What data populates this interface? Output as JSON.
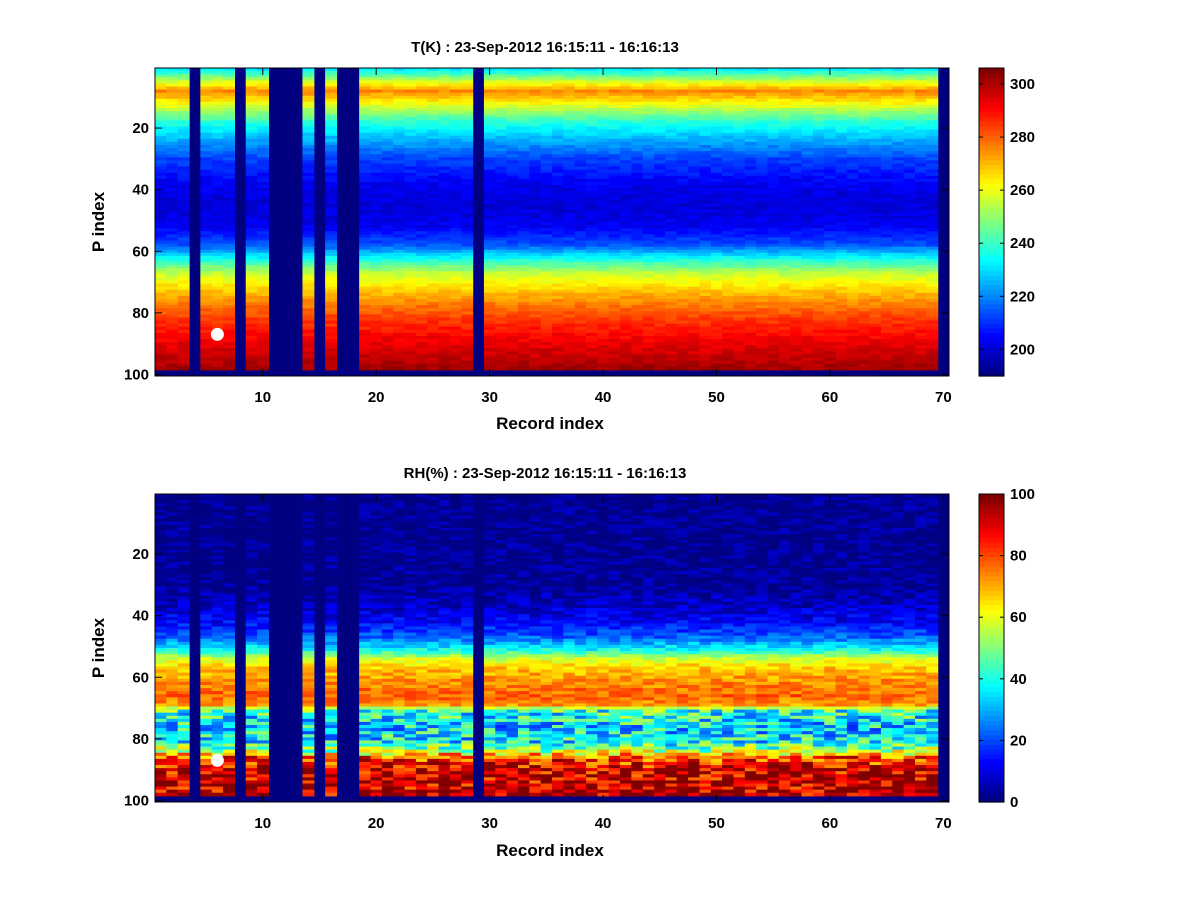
{
  "chart_data": [
    {
      "type": "heatmap",
      "title": "T(K) : 23-Sep-2012 16:15:11 - 16:16:13",
      "xlabel": "Record index",
      "ylabel": "P index",
      "x_range": [
        1,
        70
      ],
      "y_range": [
        1,
        100
      ],
      "y_reversed": true,
      "x_ticks": [
        "10",
        "20",
        "30",
        "40",
        "50",
        "60",
        "70"
      ],
      "y_ticks": [
        "20",
        "40",
        "60",
        "80",
        "100"
      ],
      "colorbar": {
        "range": [
          190,
          306
        ],
        "ticks": [
          "200",
          "220",
          "240",
          "260",
          "280",
          "300"
        ]
      },
      "colormap": "jet",
      "missing_records": [
        4,
        8,
        11,
        12,
        13,
        15,
        17,
        18,
        29,
        70
      ],
      "valid_p_range": [
        1,
        98
      ],
      "marker": {
        "record": 6,
        "p_index": 87,
        "color": "#ffffff"
      },
      "profile": [
        [
          1,
          232
        ],
        [
          5,
          258
        ],
        [
          8,
          276
        ],
        [
          12,
          262
        ],
        [
          18,
          238
        ],
        [
          25,
          222
        ],
        [
          30,
          212
        ],
        [
          38,
          203
        ],
        [
          45,
          200
        ],
        [
          52,
          203
        ],
        [
          58,
          214
        ],
        [
          63,
          238
        ],
        [
          67,
          255
        ],
        [
          72,
          267
        ],
        [
          77,
          277
        ],
        [
          82,
          285
        ],
        [
          88,
          292
        ],
        [
          94,
          298
        ],
        [
          98,
          302
        ]
      ]
    },
    {
      "type": "heatmap",
      "title": "RH(%) : 23-Sep-2012 16:15:11 - 16:16:13",
      "xlabel": "Record index",
      "ylabel": "P index",
      "x_range": [
        1,
        70
      ],
      "y_range": [
        1,
        100
      ],
      "y_reversed": true,
      "x_ticks": [
        "10",
        "20",
        "30",
        "40",
        "50",
        "60",
        "70"
      ],
      "y_ticks": [
        "20",
        "40",
        "60",
        "80",
        "100"
      ],
      "colorbar": {
        "range": [
          0,
          100
        ],
        "ticks": [
          "0",
          "20",
          "40",
          "60",
          "80",
          "100"
        ]
      },
      "colormap": "jet",
      "missing_records": [
        4,
        8,
        11,
        12,
        13,
        15,
        17,
        18,
        29,
        70
      ],
      "valid_p_range": [
        1,
        98
      ],
      "marker": {
        "record": 6,
        "p_index": 87,
        "color": "#ffffff"
      },
      "profile": [
        [
          1,
          1
        ],
        [
          30,
          2
        ],
        [
          36,
          6
        ],
        [
          42,
          12
        ],
        [
          47,
          22
        ],
        [
          51,
          38
        ],
        [
          54,
          58
        ],
        [
          57,
          68
        ],
        [
          62,
          74
        ],
        [
          66,
          78
        ],
        [
          69,
          72
        ],
        [
          71,
          42
        ],
        [
          76,
          34
        ],
        [
          81,
          38
        ],
        [
          84,
          55
        ],
        [
          86,
          80
        ],
        [
          90,
          92
        ],
        [
          98,
          95
        ]
      ]
    }
  ]
}
